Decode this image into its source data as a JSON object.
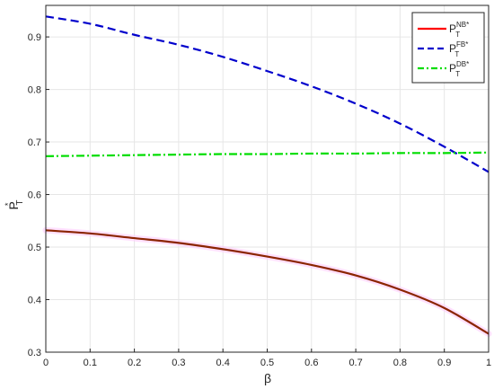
{
  "chart_data": {
    "type": "line",
    "xlabel": "β",
    "ylabel": {
      "base": "P",
      "sup": "*",
      "sub": "T"
    },
    "xlim": [
      0,
      1
    ],
    "ylim": [
      0.3,
      0.96
    ],
    "xticks": [
      0,
      0.1,
      0.2,
      0.3,
      0.4,
      0.5,
      0.6,
      0.7,
      0.8,
      0.9,
      1
    ],
    "xtick_labels": [
      "0",
      "0.1",
      "0.2",
      "0.3",
      "0.4",
      "0.5",
      "0.6",
      "0.7",
      "0.8",
      "0.9",
      "1"
    ],
    "yticks": [
      0.3,
      0.4,
      0.5,
      0.6,
      0.7,
      0.8,
      0.9
    ],
    "ytick_labels": [
      "0.3",
      "0.4",
      "0.5",
      "0.6",
      "0.7",
      "0.8",
      "0.9"
    ],
    "grid": true,
    "legend_position": "top-right",
    "x": [
      0,
      0.1,
      0.2,
      0.3,
      0.4,
      0.5,
      0.6,
      0.7,
      0.8,
      0.9,
      1.0
    ],
    "series": [
      {
        "name": "NB*",
        "legend": {
          "base": "P",
          "sub": "T",
          "sup": "NB*"
        },
        "color": "#ff0000",
        "dash": "solid",
        "values": [
          0.532,
          0.526,
          0.517,
          0.508,
          0.496,
          0.482,
          0.466,
          0.446,
          0.419,
          0.384,
          0.335
        ]
      },
      {
        "name": "FB*",
        "legend": {
          "base": "P",
          "sub": "T",
          "sup": "FB*"
        },
        "color": "#0000cc",
        "dash": "dashed",
        "values": [
          0.939,
          0.925,
          0.904,
          0.885,
          0.862,
          0.835,
          0.806,
          0.773,
          0.735,
          0.691,
          0.643
        ]
      },
      {
        "name": "DB*",
        "legend": {
          "base": "P",
          "sub": "T",
          "sup": "DB*"
        },
        "color": "#00dd00",
        "dash": "dashdot",
        "values": [
          0.673,
          0.674,
          0.675,
          0.676,
          0.677,
          0.677,
          0.678,
          0.678,
          0.679,
          0.679,
          0.68
        ]
      }
    ]
  },
  "nb_overlay_color": "#8b2500"
}
